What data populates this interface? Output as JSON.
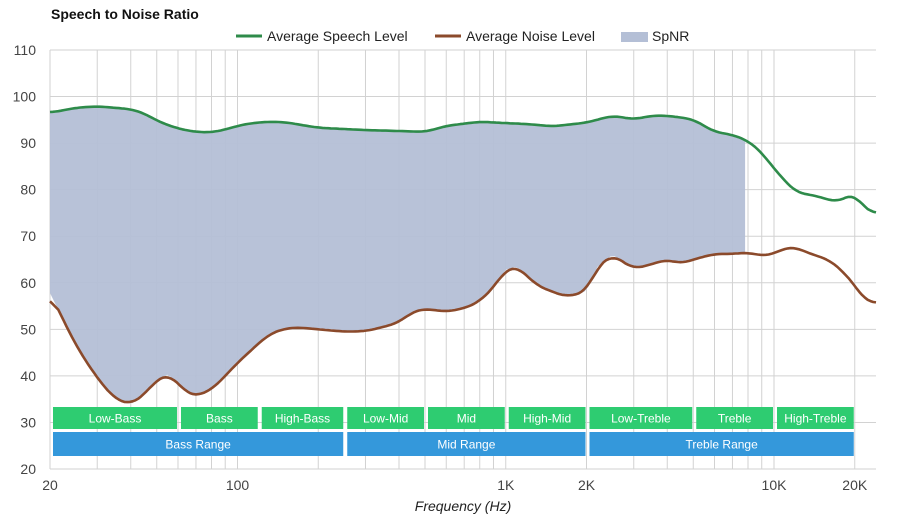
{
  "chart_data": {
    "type": "line",
    "title": "Speech to Noise Ratio",
    "xlabel": "Frequency (Hz)",
    "ylabel": "",
    "xscale": "log",
    "xlim": [
      20,
      24000
    ],
    "ylim": [
      20,
      110
    ],
    "yticks": [
      20,
      30,
      40,
      50,
      60,
      70,
      80,
      90,
      100,
      110
    ],
    "xtick_labels": [
      {
        "value": 20,
        "label": "20"
      },
      {
        "value": 100,
        "label": "100"
      },
      {
        "value": 1000,
        "label": "1K"
      },
      {
        "value": 2000,
        "label": "2K"
      },
      {
        "value": 10000,
        "label": "10K"
      },
      {
        "value": 20000,
        "label": "20K"
      }
    ],
    "grid": true,
    "legend": {
      "position": "top-center",
      "items": [
        {
          "label": "Average Speech Level",
          "color": "#2e8b4a",
          "kind": "line"
        },
        {
          "label": "Average Noise Level",
          "color": "#8b4a2b",
          "kind": "line"
        },
        {
          "label": "SpNR",
          "color": "#b4bfd6",
          "kind": "area"
        }
      ]
    },
    "series": [
      {
        "name": "Average Speech Level",
        "color": "#2e8b4a",
        "x": [
          20,
          25,
          30,
          40,
          45,
          50,
          60,
          70,
          80,
          90,
          100,
          110,
          130,
          150,
          200,
          300,
          400,
          500,
          600,
          800,
          1000,
          1200,
          1500,
          2000,
          2500,
          3000,
          3500,
          4000,
          5000,
          6000,
          7000,
          8000,
          9000,
          10000,
          12000,
          15000,
          17000,
          20000,
          22000,
          24000
        ],
        "y": [
          96.5,
          97.6,
          97.9,
          97.3,
          96.4,
          94.8,
          93.1,
          92.4,
          92.3,
          92.9,
          93.7,
          94.2,
          94.6,
          94.5,
          93.3,
          92.8,
          92.6,
          92.4,
          93.7,
          94.6,
          94.3,
          94.1,
          93.6,
          94.4,
          95.9,
          95.1,
          95.9,
          95.9,
          95.1,
          92.4,
          91.8,
          90.5,
          88.0,
          84.5,
          79.5,
          78.4,
          77.3,
          79.2,
          75.6,
          74.8
        ]
      },
      {
        "name": "Average Noise Level",
        "color": "#8b4a2b",
        "x": [
          20,
          22,
          25,
          30,
          35,
          40,
          45,
          50,
          55,
          60,
          65,
          70,
          80,
          90,
          100,
          110,
          130,
          150,
          170,
          200,
          250,
          300,
          350,
          400,
          450,
          500,
          600,
          700,
          800,
          900,
          1000,
          1100,
          1200,
          1300,
          1500,
          1700,
          2000,
          2200,
          2500,
          3000,
          3500,
          4000,
          4500,
          5000,
          6000,
          7000,
          8000,
          9000,
          10000,
          11000,
          12000,
          14000,
          16000,
          18000,
          20000,
          22000,
          24000
        ],
        "y": [
          57.8,
          53.0,
          46.5,
          39.5,
          35.0,
          33.9,
          36.0,
          39.2,
          40.3,
          38.5,
          36.2,
          35.7,
          37.0,
          40.0,
          42.8,
          45.0,
          48.8,
          50.2,
          50.4,
          50.0,
          49.5,
          49.6,
          50.5,
          51.5,
          53.8,
          54.4,
          53.8,
          54.5,
          56.0,
          59.0,
          62.8,
          63.5,
          61.5,
          59.5,
          58.0,
          57.0,
          58.2,
          63.5,
          66.0,
          63.0,
          64.0,
          65.0,
          64.1,
          65.0,
          66.2,
          66.2,
          66.5,
          65.8,
          66.2,
          67.5,
          67.6,
          66.0,
          65.0,
          62.5,
          59.5,
          55.9,
          55.7
        ]
      }
    ],
    "spnr_area": {
      "name": "SpNR",
      "color": "#b4bfd6",
      "x_range": [
        20,
        7800
      ],
      "upper": "Average Speech Level",
      "lower": "Average Noise Level"
    },
    "ranges": {
      "level1": [
        {
          "label": "Low-Bass",
          "from": 20,
          "to": 60
        },
        {
          "label": "Bass",
          "from": 60,
          "to": 120
        },
        {
          "label": "High-Bass",
          "from": 120,
          "to": 250
        },
        {
          "label": "Low-Mid",
          "from": 250,
          "to": 500
        },
        {
          "label": "Mid",
          "from": 500,
          "to": 1000
        },
        {
          "label": "High-Mid",
          "from": 1000,
          "to": 2000
        },
        {
          "label": "Low-Treble",
          "from": 2000,
          "to": 5000
        },
        {
          "label": "Treble",
          "from": 5000,
          "to": 10000
        },
        {
          "label": "High-Treble",
          "from": 10000,
          "to": 20000
        }
      ],
      "level1_color": "#2ecc71",
      "level2": [
        {
          "label": "Bass Range",
          "from": 20,
          "to": 250
        },
        {
          "label": "Mid Range",
          "from": 250,
          "to": 2000
        },
        {
          "label": "Treble Range",
          "from": 2000,
          "to": 20000
        }
      ],
      "level2_color": "#3498db"
    }
  }
}
